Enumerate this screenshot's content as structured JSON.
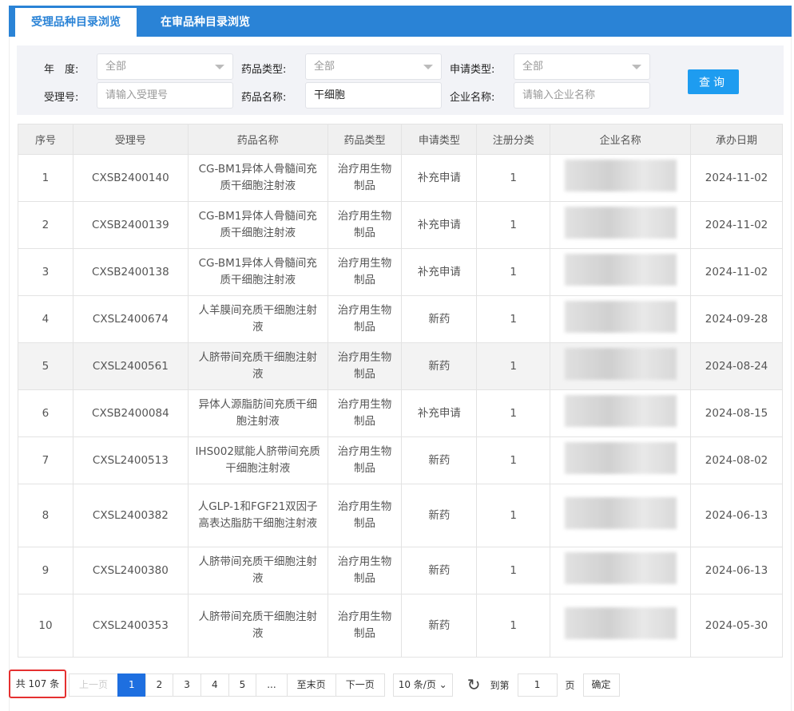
{
  "tabs": [
    {
      "label": "受理品种目录浏览",
      "active": true
    },
    {
      "label": "在审品种目录浏览",
      "active": false
    }
  ],
  "filters": {
    "year_label": "年　度:",
    "year_value": "全部",
    "drug_type_label": "药品类型:",
    "drug_type_value": "全部",
    "apply_type_label": "申请类型:",
    "apply_type_value": "全部",
    "accept_no_label": "受理号:",
    "accept_no_placeholder": "请输入受理号",
    "drug_name_label": "药品名称:",
    "drug_name_value": "干细胞",
    "company_label": "企业名称:",
    "company_placeholder": "请输入企业名称",
    "query_button": "查询"
  },
  "table": {
    "headers": [
      "序号",
      "受理号",
      "药品名称",
      "药品类型",
      "申请类型",
      "注册分类",
      "企业名称",
      "承办日期"
    ],
    "rows": [
      {
        "no": "1",
        "id": "CXSB2400140",
        "name": "CG-BM1异体人骨髓间充质干细胞注射液",
        "type": "治疗用生物制品",
        "apply": "补充申请",
        "cls": "1",
        "date": "2024-11-02"
      },
      {
        "no": "2",
        "id": "CXSB2400139",
        "name": "CG-BM1异体人骨髓间充质干细胞注射液",
        "type": "治疗用生物制品",
        "apply": "补充申请",
        "cls": "1",
        "date": "2024-11-02"
      },
      {
        "no": "3",
        "id": "CXSB2400138",
        "name": "CG-BM1异体人骨髓间充质干细胞注射液",
        "type": "治疗用生物制品",
        "apply": "补充申请",
        "cls": "1",
        "date": "2024-11-02"
      },
      {
        "no": "4",
        "id": "CXSL2400674",
        "name": "人羊膜间充质干细胞注射液",
        "type": "治疗用生物制品",
        "apply": "新药",
        "cls": "1",
        "date": "2024-09-28"
      },
      {
        "no": "5",
        "id": "CXSL2400561",
        "name": "人脐带间充质干细胞注射液",
        "type": "治疗用生物制品",
        "apply": "新药",
        "cls": "1",
        "date": "2024-08-24"
      },
      {
        "no": "6",
        "id": "CXSB2400084",
        "name": "异体人源脂肪间充质干细胞注射液",
        "type": "治疗用生物制品",
        "apply": "补充申请",
        "cls": "1",
        "date": "2024-08-15"
      },
      {
        "no": "7",
        "id": "CXSL2400513",
        "name": "IHS002赋能人脐带间充质干细胞注射液",
        "type": "治疗用生物制品",
        "apply": "新药",
        "cls": "1",
        "date": "2024-08-02"
      },
      {
        "no": "8",
        "id": "CXSL2400382",
        "name": "人GLP-1和FGF21双因子高表达脂肪干细胞注射液",
        "type": "治疗用生物制品",
        "apply": "新药",
        "cls": "1",
        "date": "2024-06-13"
      },
      {
        "no": "9",
        "id": "CXSL2400380",
        "name": "人脐带间充质干细胞注射液",
        "type": "治疗用生物制品",
        "apply": "新药",
        "cls": "1",
        "date": "2024-06-13"
      },
      {
        "no": "10",
        "id": "CXSL2400353",
        "name": "人脐带间充质干细胞注射液",
        "type": "治疗用生物制品",
        "apply": "新药",
        "cls": "1",
        "date": "2024-05-30"
      }
    ]
  },
  "pager": {
    "total": "共 107 条",
    "prev": "上一页",
    "pages": [
      "1",
      "2",
      "3",
      "4",
      "5",
      "..."
    ],
    "current": "1",
    "last": "至末页",
    "next": "下一页",
    "page_size": "10 条/页",
    "goto_label": "到第",
    "goto_value": "1",
    "page_unit": "页",
    "confirm": "确定"
  }
}
